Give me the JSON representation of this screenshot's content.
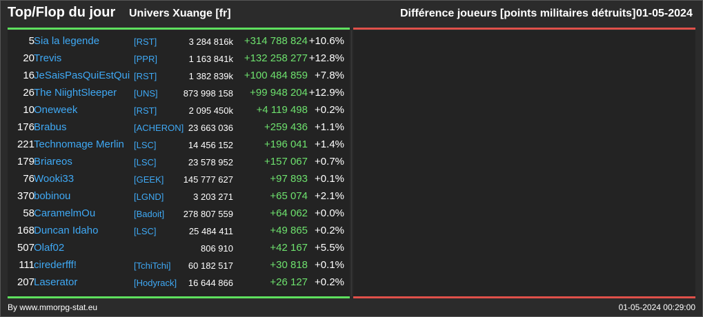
{
  "header": {
    "title": "Top/Flop du jour",
    "universe": "Univers Xuange [fr]",
    "metric": "Différence joueurs [points militaires détruits]",
    "date": "01-05-2024"
  },
  "colors": {
    "gain": "#6ee26e",
    "link": "#3fa9f5",
    "top_bar": "#5ee05e",
    "flop_bar": "#e0504a",
    "background": "#2b2b2b"
  },
  "top_rows": [
    {
      "rank": "5",
      "name": "Sia la legende",
      "alliance": "[RST]",
      "total": "3 284 816k",
      "delta": "+314 788 824",
      "pct": "+10.6%"
    },
    {
      "rank": "20",
      "name": "Trevis",
      "alliance": "[PPR]",
      "total": "1 163 841k",
      "delta": "+132 258 277",
      "pct": "+12.8%"
    },
    {
      "rank": "16",
      "name": "JeSaisPasQuiEstQui",
      "alliance": "[RST]",
      "total": "1 382 839k",
      "delta": "+100 484 859",
      "pct": "+7.8%"
    },
    {
      "rank": "26",
      "name": "The NiightSleeper",
      "alliance": "[UNS]",
      "total": "873 998 158",
      "delta": "+99 948 204",
      "pct": "+12.9%"
    },
    {
      "rank": "10",
      "name": "Oneweek",
      "alliance": "[RST]",
      "total": "2 095 450k",
      "delta": "+4 119 498",
      "pct": "+0.2%"
    },
    {
      "rank": "176",
      "name": "Brabus",
      "alliance": "[ACHERON]",
      "total": "23 663 036",
      "delta": "+259 436",
      "pct": "+1.1%"
    },
    {
      "rank": "221",
      "name": "Technomage Merlin",
      "alliance": "[LSC]",
      "total": "14 456 152",
      "delta": "+196 041",
      "pct": "+1.4%"
    },
    {
      "rank": "179",
      "name": "Briareos",
      "alliance": "[LSC]",
      "total": "23 578 952",
      "delta": "+157 067",
      "pct": "+0.7%"
    },
    {
      "rank": "76",
      "name": "Wooki33",
      "alliance": "[GEEK]",
      "total": "145 777 627",
      "delta": "+97 893",
      "pct": "+0.1%"
    },
    {
      "rank": "370",
      "name": "bobinou",
      "alliance": "[LGND]",
      "total": "3 203 271",
      "delta": "+65 074",
      "pct": "+2.1%"
    },
    {
      "rank": "58",
      "name": "CaramelmOu",
      "alliance": "[Badoit]",
      "total": "278 807 559",
      "delta": "+64 062",
      "pct": "+0.0%"
    },
    {
      "rank": "168",
      "name": "Duncan Idaho",
      "alliance": "[LSC]",
      "total": "25 484 411",
      "delta": "+49 865",
      "pct": "+0.2%"
    },
    {
      "rank": "507",
      "name": "Olaf02",
      "alliance": "",
      "total": "806 910",
      "delta": "+42 167",
      "pct": "+5.5%"
    },
    {
      "rank": "111",
      "name": "cirederfff!",
      "alliance": "[TchiTchi]",
      "total": "60 182 517",
      "delta": "+30 818",
      "pct": "+0.1%"
    },
    {
      "rank": "207",
      "name": "Laserator",
      "alliance": "[Hodyrack]",
      "total": "16 644 866",
      "delta": "+26 127",
      "pct": "+0.2%"
    }
  ],
  "footer": {
    "source": "By www.mmorpg-stat.eu",
    "timestamp": "01-05-2024 00:29:00"
  }
}
